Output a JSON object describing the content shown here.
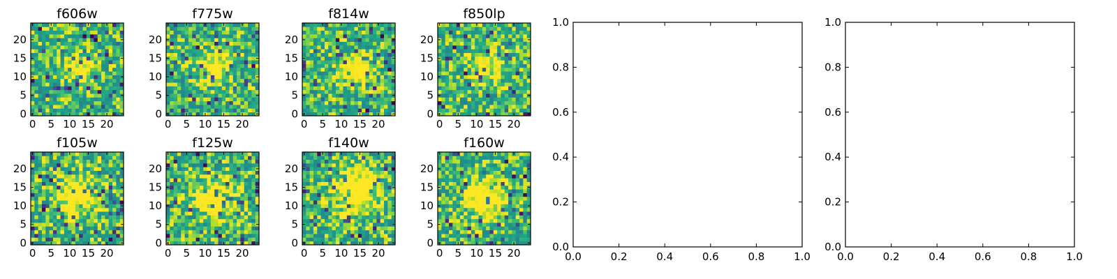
{
  "chart_data": [
    {
      "type": "heatmap",
      "title": "f606w",
      "colormap": "viridis",
      "grid_size": [
        25,
        25
      ],
      "xlim": [
        0,
        24
      ],
      "ylim": [
        0,
        24
      ],
      "xticks": [
        0,
        5,
        10,
        15,
        20
      ],
      "yticks": [
        0,
        5,
        10,
        15,
        20
      ],
      "seed": 11,
      "source": {
        "x": 13,
        "y": 12,
        "strength": 0.35,
        "width": 3.0
      },
      "value_range": [
        0,
        1
      ]
    },
    {
      "type": "heatmap",
      "title": "f775w",
      "colormap": "viridis",
      "grid_size": [
        25,
        25
      ],
      "xlim": [
        0,
        24
      ],
      "ylim": [
        0,
        24
      ],
      "xticks": [
        0,
        5,
        10,
        15,
        20
      ],
      "yticks": [
        0,
        5,
        10,
        15,
        20
      ],
      "seed": 23,
      "source": {
        "x": 13,
        "y": 13,
        "strength": 0.35,
        "width": 3.0
      },
      "value_range": [
        0,
        1
      ]
    },
    {
      "type": "heatmap",
      "title": "f814w",
      "colormap": "viridis",
      "grid_size": [
        25,
        25
      ],
      "xlim": [
        0,
        24
      ],
      "ylim": [
        0,
        24
      ],
      "xticks": [
        0,
        5,
        10,
        15,
        20
      ],
      "yticks": [
        0,
        5,
        10,
        15,
        20
      ],
      "seed": 37,
      "source": {
        "x": 14,
        "y": 12,
        "strength": 0.4,
        "width": 3.0
      },
      "value_range": [
        0,
        1
      ]
    },
    {
      "type": "heatmap",
      "title": "f850lp",
      "colormap": "viridis",
      "grid_size": [
        25,
        25
      ],
      "xlim": [
        0,
        24
      ],
      "ylim": [
        0,
        24
      ],
      "xticks": [
        0,
        5,
        10,
        15,
        20
      ],
      "yticks": [
        0,
        5,
        10,
        15,
        20
      ],
      "seed": 41,
      "source": {
        "x": 13,
        "y": 13,
        "strength": 0.3,
        "width": 3.0
      },
      "value_range": [
        0,
        1
      ]
    },
    {
      "type": "heatmap",
      "title": "f105w",
      "colormap": "viridis",
      "grid_size": [
        25,
        25
      ],
      "xlim": [
        0,
        24
      ],
      "ylim": [
        0,
        24
      ],
      "xticks": [
        0,
        5,
        10,
        15,
        20
      ],
      "yticks": [
        0,
        5,
        10,
        15,
        20
      ],
      "seed": 53,
      "source": {
        "x": 12,
        "y": 13,
        "strength": 0.45,
        "width": 3.5
      },
      "value_range": [
        0,
        1
      ]
    },
    {
      "type": "heatmap",
      "title": "f125w",
      "colormap": "viridis",
      "grid_size": [
        25,
        25
      ],
      "xlim": [
        0,
        24
      ],
      "ylim": [
        0,
        24
      ],
      "xticks": [
        0,
        5,
        10,
        15,
        20
      ],
      "yticks": [
        0,
        5,
        10,
        15,
        20
      ],
      "seed": 67,
      "source": {
        "x": 13,
        "y": 12,
        "strength": 0.4,
        "width": 3.5
      },
      "value_range": [
        0,
        1
      ]
    },
    {
      "type": "heatmap",
      "title": "f140w",
      "colormap": "viridis",
      "grid_size": [
        25,
        25
      ],
      "xlim": [
        0,
        24
      ],
      "ylim": [
        0,
        24
      ],
      "xticks": [
        0,
        5,
        10,
        15,
        20
      ],
      "yticks": [
        0,
        5,
        10,
        15,
        20
      ],
      "seed": 79,
      "source": {
        "x": 14,
        "y": 14,
        "strength": 0.5,
        "width": 4.0
      },
      "value_range": [
        0,
        1
      ]
    },
    {
      "type": "heatmap",
      "title": "f160w",
      "colormap": "viridis",
      "grid_size": [
        25,
        25
      ],
      "xlim": [
        0,
        24
      ],
      "ylim": [
        0,
        24
      ],
      "xticks": [
        0,
        5,
        10,
        15,
        20
      ],
      "yticks": [
        0,
        5,
        10,
        15,
        20
      ],
      "seed": 97,
      "source": {
        "x": 12,
        "y": 12,
        "strength": 0.5,
        "width": 3.5
      },
      "value_range": [
        0,
        1
      ]
    },
    {
      "type": "line",
      "title": "",
      "series": [],
      "xlim": [
        0,
        1
      ],
      "ylim": [
        0,
        1
      ],
      "xticks": [
        0.0,
        0.2,
        0.4,
        0.6,
        0.8,
        1.0
      ],
      "yticks": [
        0.0,
        0.2,
        0.4,
        0.6,
        0.8,
        1.0
      ],
      "xtick_labels": [
        "0.0",
        "0.2",
        "0.4",
        "0.6",
        "0.8",
        "1.0"
      ],
      "ytick_labels": [
        "0.0",
        "0.2",
        "0.4",
        "0.6",
        "0.8",
        "1.0"
      ]
    },
    {
      "type": "line",
      "title": "",
      "series": [],
      "xlim": [
        0,
        1
      ],
      "ylim": [
        0,
        1
      ],
      "xticks": [
        0.0,
        0.2,
        0.4,
        0.6,
        0.8,
        1.0
      ],
      "yticks": [
        0.0,
        0.2,
        0.4,
        0.6,
        0.8,
        1.0
      ],
      "xtick_labels": [
        "0.0",
        "0.2",
        "0.4",
        "0.6",
        "0.8",
        "1.0"
      ],
      "ytick_labels": [
        "0.0",
        "0.2",
        "0.4",
        "0.6",
        "0.8",
        "1.0"
      ]
    }
  ]
}
